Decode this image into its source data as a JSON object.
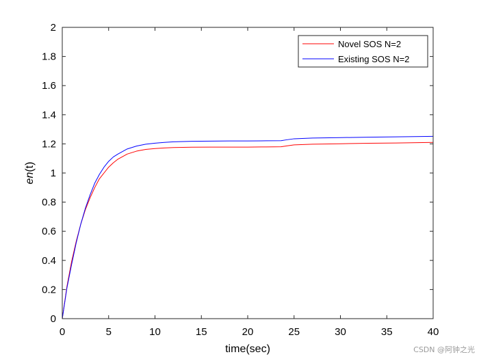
{
  "chart_data": {
    "type": "line",
    "xlabel": "time(sec)",
    "ylabel_main": "en",
    "ylabel_arg": "(t)",
    "xlim": [
      0,
      40
    ],
    "ylim": [
      0,
      2
    ],
    "xticks": [
      0,
      5,
      10,
      15,
      20,
      25,
      30,
      35,
      40
    ],
    "yticks": [
      0,
      0.2,
      0.4,
      0.6,
      0.8,
      1,
      1.2,
      1.4,
      1.6,
      1.8,
      2
    ],
    "grid": false,
    "legend_position": "top-right",
    "series": [
      {
        "name": "Novel SOS N=2",
        "color": "#ff0000",
        "x": [
          0,
          0.5,
          1,
          1.5,
          2,
          2.5,
          3,
          3.5,
          4,
          4.5,
          5,
          5.5,
          6,
          7,
          8,
          9,
          10,
          11,
          12,
          14,
          16,
          18,
          20,
          22,
          23.6,
          24.2,
          25,
          27,
          30,
          33,
          36,
          40
        ],
        "y": [
          0,
          0.22,
          0.39,
          0.53,
          0.65,
          0.75,
          0.83,
          0.9,
          0.96,
          1.0,
          1.04,
          1.07,
          1.095,
          1.13,
          1.15,
          1.162,
          1.168,
          1.172,
          1.175,
          1.177,
          1.178,
          1.178,
          1.178,
          1.179,
          1.18,
          1.186,
          1.193,
          1.198,
          1.201,
          1.204,
          1.206,
          1.21
        ]
      },
      {
        "name": "Existing SOS N=2",
        "color": "#0000ff",
        "x": [
          0,
          0.5,
          1,
          1.5,
          2,
          2.5,
          3,
          3.5,
          4,
          4.5,
          5,
          5.5,
          6,
          7,
          8,
          9,
          10,
          11,
          12,
          14,
          16,
          18,
          20,
          22,
          23.6,
          24.2,
          25,
          27,
          30,
          33,
          36,
          40
        ],
        "y": [
          0,
          0.21,
          0.37,
          0.52,
          0.65,
          0.76,
          0.85,
          0.93,
          0.99,
          1.04,
          1.08,
          1.11,
          1.13,
          1.165,
          1.185,
          1.198,
          1.205,
          1.21,
          1.214,
          1.218,
          1.219,
          1.22,
          1.22,
          1.221,
          1.222,
          1.228,
          1.235,
          1.24,
          1.243,
          1.246,
          1.248,
          1.252
        ]
      }
    ]
  },
  "watermark": "CSDN @阿钟之光"
}
